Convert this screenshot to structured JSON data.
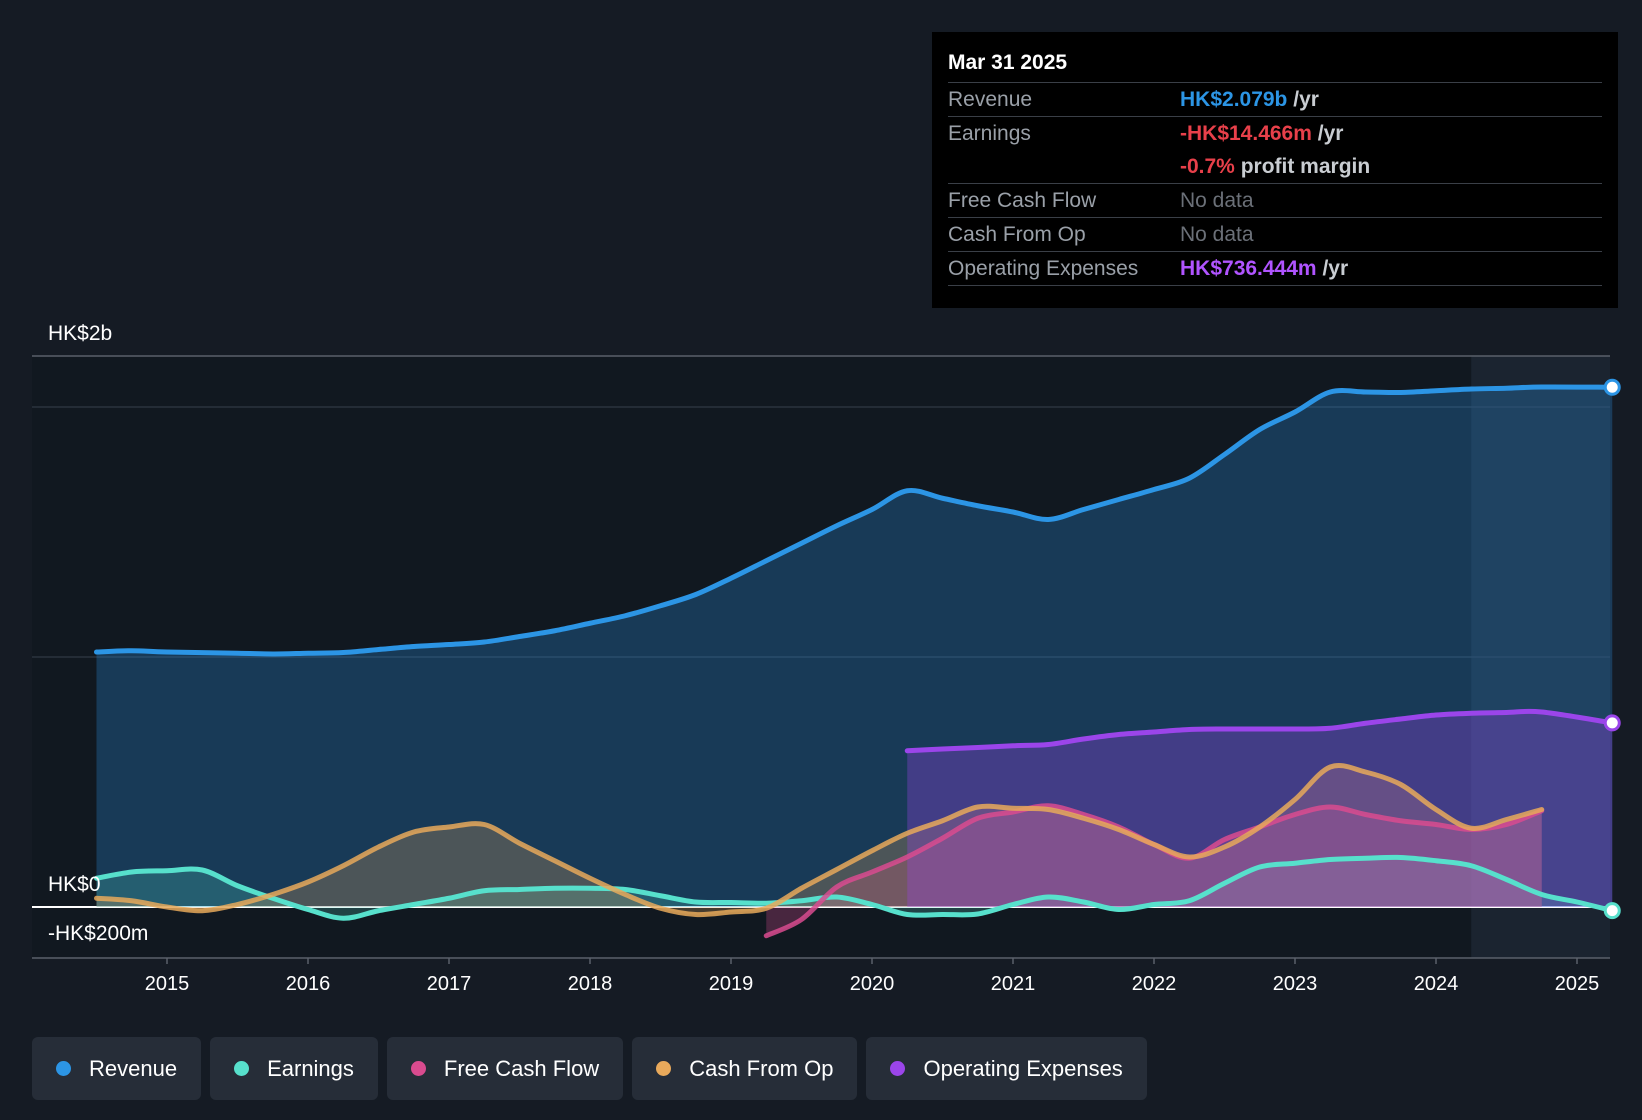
{
  "chart_data": {
    "type": "line",
    "title": "",
    "y_unit_labels": {
      "top": "HK$2b",
      "zero": "HK$0",
      "bottom": "-HK$200m"
    },
    "ylim": [
      -200,
      2200
    ],
    "xlim": [
      2014.05,
      2025.25
    ],
    "x_ticks": [
      "2015",
      "2016",
      "2017",
      "2018",
      "2019",
      "2020",
      "2021",
      "2022",
      "2023",
      "2024",
      "2025"
    ],
    "forecast_start": 2024.25,
    "series": [
      {
        "name": "Revenue",
        "key": "revenue",
        "color": "#2c95e5",
        "fill": true,
        "points": [
          [
            2014.5,
            1020
          ],
          [
            2014.75,
            1025
          ],
          [
            2015.0,
            1020
          ],
          [
            2015.5,
            1015
          ],
          [
            2015.75,
            1012
          ],
          [
            2016.0,
            1015
          ],
          [
            2016.25,
            1018
          ],
          [
            2016.5,
            1030
          ],
          [
            2016.75,
            1042
          ],
          [
            2017.0,
            1050
          ],
          [
            2017.25,
            1060
          ],
          [
            2017.5,
            1082
          ],
          [
            2017.75,
            1105
          ],
          [
            2018.0,
            1135
          ],
          [
            2018.25,
            1165
          ],
          [
            2018.5,
            1205
          ],
          [
            2018.75,
            1250
          ],
          [
            2019.0,
            1315
          ],
          [
            2019.25,
            1385
          ],
          [
            2019.5,
            1455
          ],
          [
            2019.75,
            1525
          ],
          [
            2020.0,
            1590
          ],
          [
            2020.25,
            1665
          ],
          [
            2020.5,
            1635
          ],
          [
            2020.75,
            1605
          ],
          [
            2021.0,
            1580
          ],
          [
            2021.25,
            1550
          ],
          [
            2021.5,
            1590
          ],
          [
            2021.75,
            1630
          ],
          [
            2022.0,
            1670
          ],
          [
            2022.25,
            1715
          ],
          [
            2022.5,
            1810
          ],
          [
            2022.75,
            1910
          ],
          [
            2023.0,
            1980
          ],
          [
            2023.25,
            2060
          ],
          [
            2023.5,
            2060
          ],
          [
            2023.75,
            2058
          ],
          [
            2024.0,
            2065
          ],
          [
            2024.25,
            2072
          ],
          [
            2024.5,
            2075
          ],
          [
            2024.75,
            2080
          ],
          [
            2025.25,
            2079
          ]
        ]
      },
      {
        "name": "Earnings",
        "key": "earnings",
        "color": "#57e0cc",
        "fill": true,
        "points": [
          [
            2014.5,
            115
          ],
          [
            2014.75,
            140
          ],
          [
            2015.0,
            145
          ],
          [
            2015.25,
            148
          ],
          [
            2015.5,
            85
          ],
          [
            2015.75,
            35
          ],
          [
            2016.0,
            -10
          ],
          [
            2016.25,
            -45
          ],
          [
            2016.5,
            -15
          ],
          [
            2016.75,
            10
          ],
          [
            2017.0,
            35
          ],
          [
            2017.25,
            65
          ],
          [
            2017.5,
            70
          ],
          [
            2017.75,
            75
          ],
          [
            2018.0,
            75
          ],
          [
            2018.25,
            70
          ],
          [
            2018.5,
            45
          ],
          [
            2018.75,
            20
          ],
          [
            2019.0,
            18
          ],
          [
            2019.25,
            15
          ],
          [
            2019.5,
            25
          ],
          [
            2019.75,
            40
          ],
          [
            2020.0,
            10
          ],
          [
            2020.25,
            -30
          ],
          [
            2020.5,
            -30
          ],
          [
            2020.75,
            -28
          ],
          [
            2021.0,
            10
          ],
          [
            2021.25,
            40
          ],
          [
            2021.5,
            20
          ],
          [
            2021.75,
            -10
          ],
          [
            2022.0,
            10
          ],
          [
            2022.25,
            25
          ],
          [
            2022.5,
            95
          ],
          [
            2022.75,
            160
          ],
          [
            2023.0,
            175
          ],
          [
            2023.25,
            190
          ],
          [
            2023.5,
            195
          ],
          [
            2023.75,
            198
          ],
          [
            2024.0,
            185
          ],
          [
            2024.25,
            165
          ],
          [
            2024.5,
            110
          ],
          [
            2024.75,
            50
          ],
          [
            2025.0,
            20
          ],
          [
            2025.25,
            -14.466
          ]
        ]
      },
      {
        "name": "Free Cash Flow",
        "key": "fcf",
        "color": "#d94b8f",
        "fill": true,
        "points": [
          [
            2019.25,
            -115
          ],
          [
            2019.5,
            -50
          ],
          [
            2019.75,
            80
          ],
          [
            2020.0,
            140
          ],
          [
            2020.25,
            200
          ],
          [
            2020.5,
            275
          ],
          [
            2020.75,
            355
          ],
          [
            2021.0,
            380
          ],
          [
            2021.25,
            405
          ],
          [
            2021.5,
            370
          ],
          [
            2021.75,
            320
          ],
          [
            2022.0,
            250
          ],
          [
            2022.25,
            195
          ],
          [
            2022.5,
            270
          ],
          [
            2022.75,
            320
          ],
          [
            2023.0,
            370
          ],
          [
            2023.25,
            400
          ],
          [
            2023.5,
            370
          ],
          [
            2023.75,
            345
          ],
          [
            2024.0,
            330
          ],
          [
            2024.25,
            310
          ],
          [
            2024.5,
            330
          ],
          [
            2024.75,
            385
          ]
        ]
      },
      {
        "name": "Cash From Op",
        "key": "cfo",
        "color": "#e8a95b",
        "fill": true,
        "points": [
          [
            2014.5,
            35
          ],
          [
            2014.75,
            25
          ],
          [
            2015.0,
            0
          ],
          [
            2015.25,
            -15
          ],
          [
            2015.5,
            10
          ],
          [
            2015.75,
            50
          ],
          [
            2016.0,
            100
          ],
          [
            2016.25,
            165
          ],
          [
            2016.5,
            240
          ],
          [
            2016.75,
            300
          ],
          [
            2017.0,
            320
          ],
          [
            2017.25,
            330
          ],
          [
            2017.5,
            255
          ],
          [
            2017.75,
            185
          ],
          [
            2018.0,
            115
          ],
          [
            2018.25,
            50
          ],
          [
            2018.5,
            -5
          ],
          [
            2018.75,
            -30
          ],
          [
            2019.0,
            -20
          ],
          [
            2019.25,
            -5
          ],
          [
            2019.5,
            75
          ],
          [
            2019.75,
            150
          ],
          [
            2020.0,
            225
          ],
          [
            2020.25,
            295
          ],
          [
            2020.5,
            345
          ],
          [
            2020.75,
            400
          ],
          [
            2021.0,
            395
          ],
          [
            2021.25,
            390
          ],
          [
            2021.5,
            355
          ],
          [
            2021.75,
            310
          ],
          [
            2022.0,
            250
          ],
          [
            2022.25,
            200
          ],
          [
            2022.5,
            240
          ],
          [
            2022.75,
            320
          ],
          [
            2023.0,
            430
          ],
          [
            2023.25,
            560
          ],
          [
            2023.5,
            540
          ],
          [
            2023.75,
            490
          ],
          [
            2024.0,
            390
          ],
          [
            2024.25,
            315
          ],
          [
            2024.5,
            350
          ],
          [
            2024.75,
            390
          ]
        ]
      },
      {
        "name": "Operating Expenses",
        "key": "opex",
        "color": "#9b45ea",
        "fill": true,
        "points": [
          [
            2020.25,
            625
          ],
          [
            2020.5,
            632
          ],
          [
            2020.75,
            638
          ],
          [
            2021.0,
            645
          ],
          [
            2021.25,
            650
          ],
          [
            2021.5,
            672
          ],
          [
            2021.75,
            690
          ],
          [
            2022.0,
            700
          ],
          [
            2022.25,
            710
          ],
          [
            2022.5,
            712
          ],
          [
            2022.75,
            712
          ],
          [
            2023.0,
            712
          ],
          [
            2023.25,
            715
          ],
          [
            2023.5,
            735
          ],
          [
            2023.75,
            752
          ],
          [
            2024.0,
            768
          ],
          [
            2024.25,
            775
          ],
          [
            2024.5,
            778
          ],
          [
            2024.75,
            780
          ],
          [
            2025.25,
            736.444
          ]
        ]
      }
    ]
  },
  "tooltip": {
    "date": "Mar 31 2025",
    "rows": {
      "revenue": {
        "label": "Revenue",
        "value": "HK$2.079b",
        "unit": "/yr",
        "color": "#2c95e5"
      },
      "earnings": {
        "label": "Earnings",
        "value": "-HK$14.466m",
        "unit": "/yr",
        "color": "#e8404a"
      },
      "margin": {
        "value": "-0.7%",
        "text": "profit margin",
        "color": "#e8404a"
      },
      "fcf": {
        "label": "Free Cash Flow",
        "value": "No data"
      },
      "cfo": {
        "label": "Cash From Op",
        "value": "No data"
      },
      "opex": {
        "label": "Operating Expenses",
        "value": "HK$736.444m",
        "unit": "/yr",
        "color": "#b054ff"
      }
    }
  },
  "legend": [
    {
      "label": "Revenue",
      "color": "#2c95e5"
    },
    {
      "label": "Earnings",
      "color": "#57e0cc"
    },
    {
      "label": "Free Cash Flow",
      "color": "#d94b8f"
    },
    {
      "label": "Cash From Op",
      "color": "#e8a95b"
    },
    {
      "label": "Operating Expenses",
      "color": "#9b45ea"
    }
  ]
}
